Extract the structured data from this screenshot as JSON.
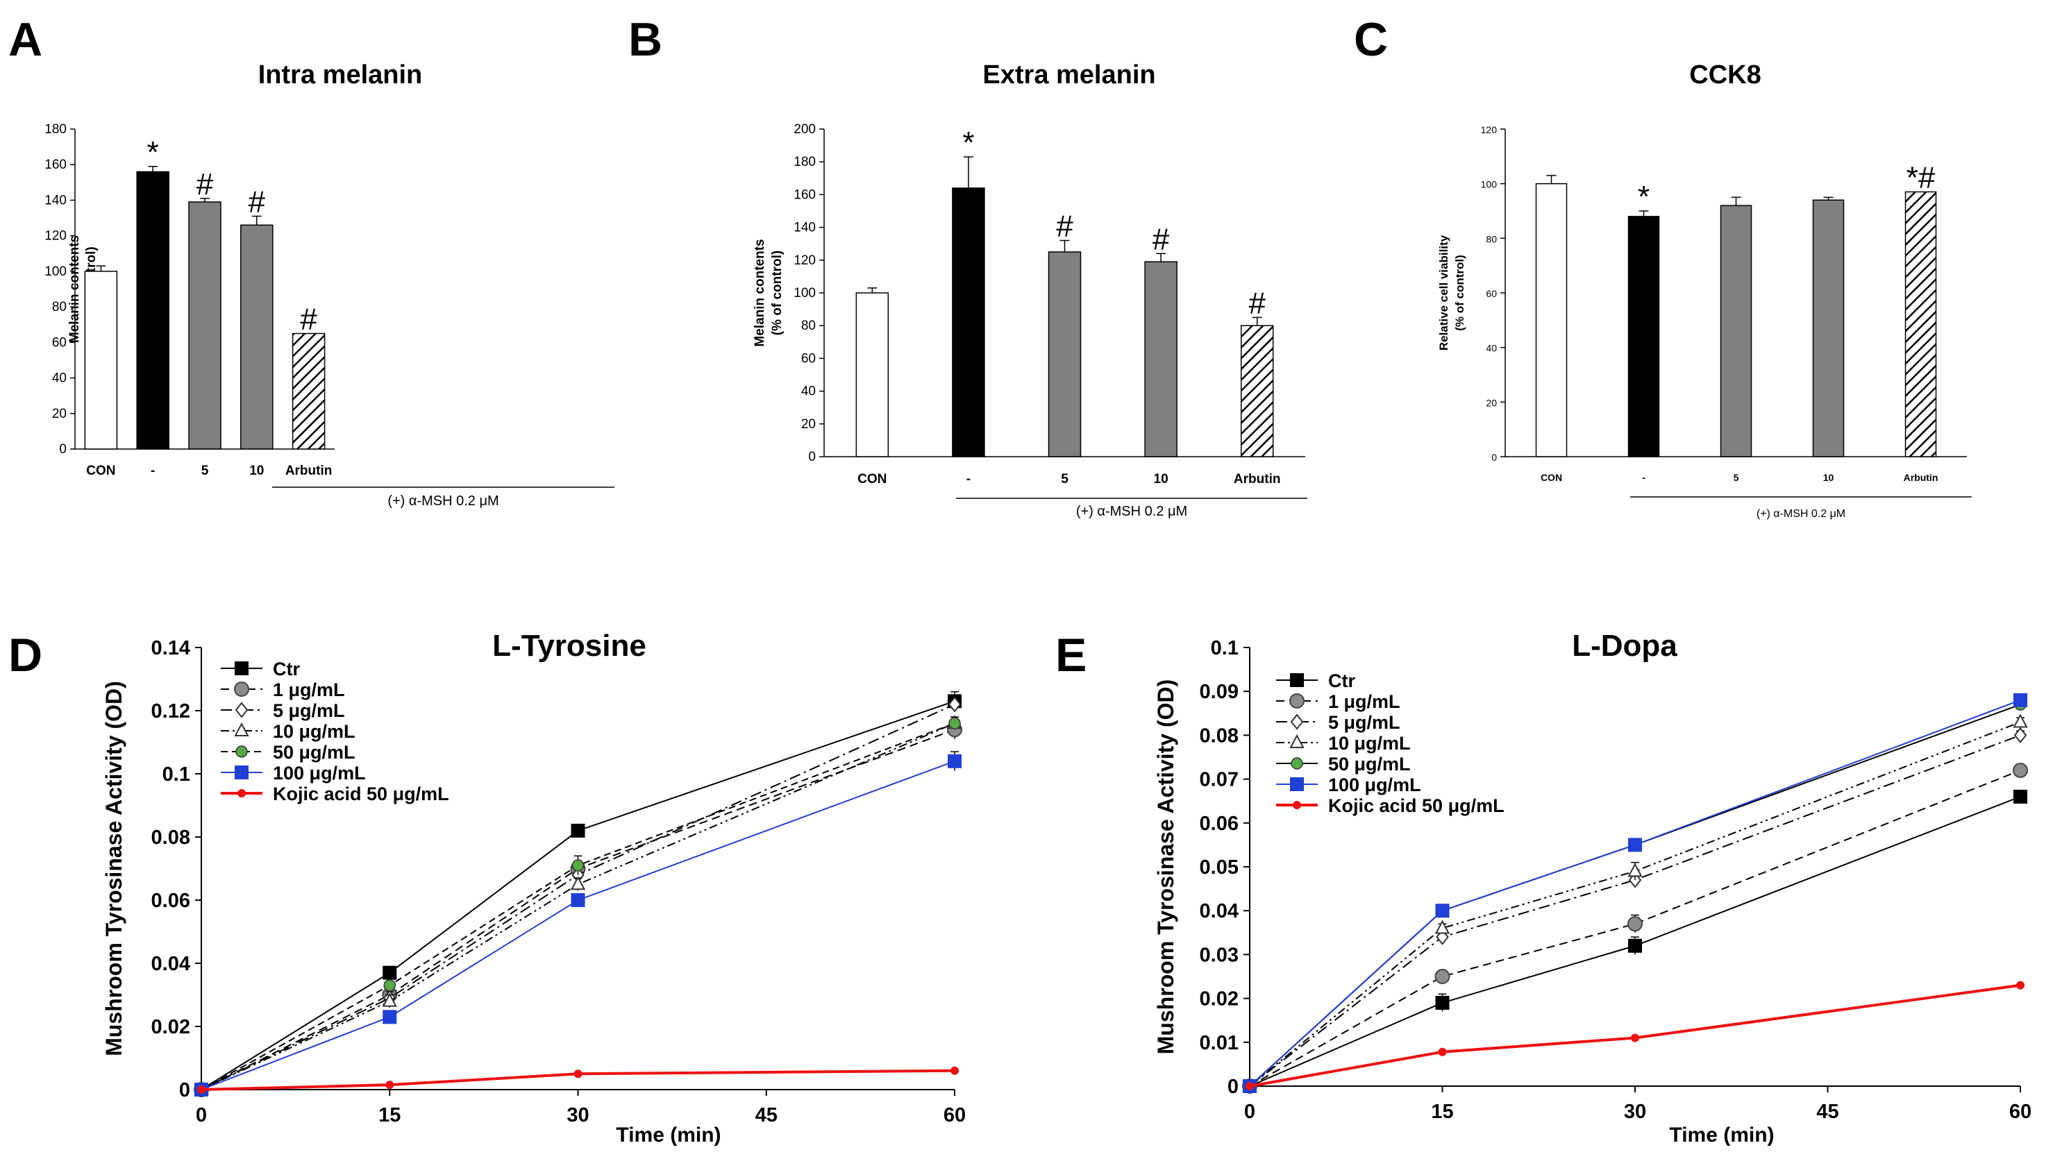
{
  "panel_letters": [
    "A",
    "B",
    "C",
    "D",
    "E"
  ],
  "chart_data": [
    {
      "panel": "A",
      "type": "bar",
      "title": "Intra melanin",
      "ylabel_line1": "Melanin contents",
      "ylabel_line2": "(% of control)",
      "ylim": [
        0,
        180
      ],
      "yticks": [
        0,
        20,
        40,
        60,
        80,
        100,
        120,
        140,
        160,
        180
      ],
      "categories": [
        "CON",
        "-",
        "5",
        "10",
        "Arbutin"
      ],
      "values": [
        100,
        156,
        139,
        126,
        65
      ],
      "errors": [
        3,
        3,
        2,
        5,
        0
      ],
      "fills": [
        "white",
        "black",
        "gray",
        "gray",
        "hatch"
      ],
      "significance": [
        "",
        "*",
        "#",
        "#",
        "#"
      ],
      "group_label": "(+) α-MSH 0.2 μM"
    },
    {
      "panel": "B",
      "type": "bar",
      "title": "Extra melanin",
      "ylabel_line1": "Melanin contents",
      "ylabel_line2": "(% of control)",
      "ylim": [
        0,
        200
      ],
      "yticks": [
        0,
        20,
        40,
        60,
        80,
        100,
        120,
        140,
        160,
        180,
        200
      ],
      "categories": [
        "CON",
        "-",
        "5",
        "10",
        "Arbutin"
      ],
      "values": [
        100,
        164,
        125,
        119,
        80
      ],
      "errors": [
        3,
        19,
        7,
        5,
        5
      ],
      "fills": [
        "white",
        "black",
        "gray",
        "gray",
        "hatch"
      ],
      "significance": [
        "",
        "*",
        "#",
        "#",
        "#"
      ],
      "group_label": "(+) α-MSH 0.2 μM"
    },
    {
      "panel": "C",
      "type": "bar",
      "title": "CCK8",
      "ylabel_line1": "Relative cell viability",
      "ylabel_line2": "(% of control)",
      "ylim": [
        0,
        120
      ],
      "yticks": [
        0,
        20,
        40,
        60,
        80,
        100,
        120
      ],
      "categories": [
        "CON",
        "-",
        "5",
        "10",
        "Arbutin"
      ],
      "values": [
        100,
        88,
        92,
        94,
        97
      ],
      "errors": [
        3,
        2,
        3,
        1,
        0
      ],
      "fills": [
        "white",
        "black",
        "gray",
        "gray",
        "hatch"
      ],
      "significance": [
        "",
        "*",
        "",
        "",
        "*#"
      ],
      "group_label": "(+) α-MSH 0.2 μM"
    },
    {
      "panel": "D",
      "type": "line",
      "title": "L-Tyrosine",
      "xlabel": "Time (min)",
      "ylabel": "Mushroom Tyrosinase Activity (OD)",
      "xlim": [
        0,
        60
      ],
      "xticks": [
        0,
        15,
        30,
        45,
        60
      ],
      "ylim": [
        0,
        0.14
      ],
      "yticks": [
        "0",
        "0.02",
        "0.04",
        "0.06",
        "0.08",
        "0.1",
        "0.12",
        "0.14"
      ],
      "x": [
        0,
        15,
        30,
        60
      ],
      "series": [
        {
          "name": "Ctr",
          "values": [
            0,
            0.037,
            0.082,
            0.123
          ],
          "errors": [
            0,
            0.002,
            0,
            0.003
          ],
          "color": "#000000",
          "dash": "",
          "marker": "square",
          "width": 2
        },
        {
          "name": "1 μg/mL",
          "values": [
            0,
            0.03,
            0.07,
            0.114
          ],
          "errors": [
            0,
            0.002,
            0.002,
            0.003
          ],
          "color": "#000000",
          "dash": "12,7",
          "marker": "circle",
          "width": 2
        },
        {
          "name": "5 μg/mL",
          "values": [
            0,
            0.029,
            0.068,
            0.122
          ],
          "errors": [
            0,
            0.002,
            0.002,
            0.002
          ],
          "color": "#000000",
          "dash": "16,6,3,6",
          "marker": "diamond",
          "width": 2
        },
        {
          "name": "10 μg/mL",
          "values": [
            0,
            0.028,
            0.065,
            0.116
          ],
          "errors": [
            0,
            0.002,
            0.002,
            0.002
          ],
          "color": "#000000",
          "dash": "12,5,3,5,3,5",
          "marker": "triangle",
          "width": 2
        },
        {
          "name": "50 μg/mL",
          "values": [
            0,
            0.033,
            0.071,
            0.116
          ],
          "errors": [
            0,
            0.002,
            0.003,
            0.002
          ],
          "color": "#000000",
          "dash": "10,6",
          "marker": "circle-green",
          "width": 2
        },
        {
          "name": "100 μg/mL",
          "values": [
            0,
            0.023,
            0.06,
            0.104
          ],
          "errors": [
            0,
            0.001,
            0.001,
            0.003
          ],
          "color": "#1f3fd6",
          "dash": "",
          "marker": "square-blue",
          "width": 2
        },
        {
          "name": "Kojic acid 50 μg/mL",
          "values": [
            0,
            0.0015,
            0.005,
            0.006
          ],
          "errors": [
            0,
            0,
            0,
            0
          ],
          "color": "#ee1111",
          "dash": "",
          "marker": "dot-red",
          "width": 4
        }
      ]
    },
    {
      "panel": "E",
      "type": "line",
      "title": "L-Dopa",
      "xlabel": "Time (min)",
      "ylabel": "Mushroom Tyrosinase Activity (OD)",
      "xlim": [
        0,
        60
      ],
      "xticks": [
        0,
        15,
        30,
        45,
        60
      ],
      "ylim": [
        0,
        0.1
      ],
      "yticks": [
        "0",
        "0.01",
        "0.02",
        "0.03",
        "0.04",
        "0.05",
        "0.06",
        "0.07",
        "0.08",
        "0.09",
        "0.1"
      ],
      "x": [
        0,
        15,
        30,
        60
      ],
      "series": [
        {
          "name": "Ctr",
          "values": [
            0,
            0.019,
            0.032,
            0.066
          ],
          "errors": [
            0,
            0.002,
            0.002,
            0
          ],
          "color": "#000000",
          "dash": "",
          "marker": "square",
          "width": 2
        },
        {
          "name": "1 μg/mL",
          "values": [
            0,
            0.025,
            0.037,
            0.072
          ],
          "errors": [
            0,
            0.001,
            0.002,
            0
          ],
          "color": "#000000",
          "dash": "12,7",
          "marker": "circle",
          "width": 2
        },
        {
          "name": "5 μg/mL",
          "values": [
            0,
            0.034,
            0.047,
            0.08
          ],
          "errors": [
            0,
            0.001,
            0.001,
            0.001
          ],
          "color": "#000000",
          "dash": "16,6,3,6",
          "marker": "diamond",
          "width": 2
        },
        {
          "name": "10 μg/mL",
          "values": [
            0,
            0.036,
            0.049,
            0.083
          ],
          "errors": [
            0,
            0.001,
            0.002,
            0.001
          ],
          "color": "#000000",
          "dash": "12,5,3,5,3,5",
          "marker": "triangle",
          "width": 2
        },
        {
          "name": "50 μg/mL",
          "values": [
            0,
            0.04,
            0.055,
            0.087
          ],
          "errors": [
            0,
            0,
            0.001,
            0.001
          ],
          "color": "#000000",
          "dash": "",
          "marker": "circle-green",
          "width": 2
        },
        {
          "name": "100 μg/mL",
          "values": [
            0,
            0.04,
            0.055,
            0.088
          ],
          "errors": [
            0,
            0,
            0,
            0.001
          ],
          "color": "#1f3fd6",
          "dash": "",
          "marker": "square-blue",
          "width": 2
        },
        {
          "name": "Kojic acid 50 μg/mL",
          "values": [
            0,
            0.0078,
            0.011,
            0.023
          ],
          "errors": [
            0,
            0,
            0,
            0
          ],
          "color": "#ee1111",
          "dash": "",
          "marker": "dot-red",
          "width": 4
        }
      ]
    }
  ]
}
